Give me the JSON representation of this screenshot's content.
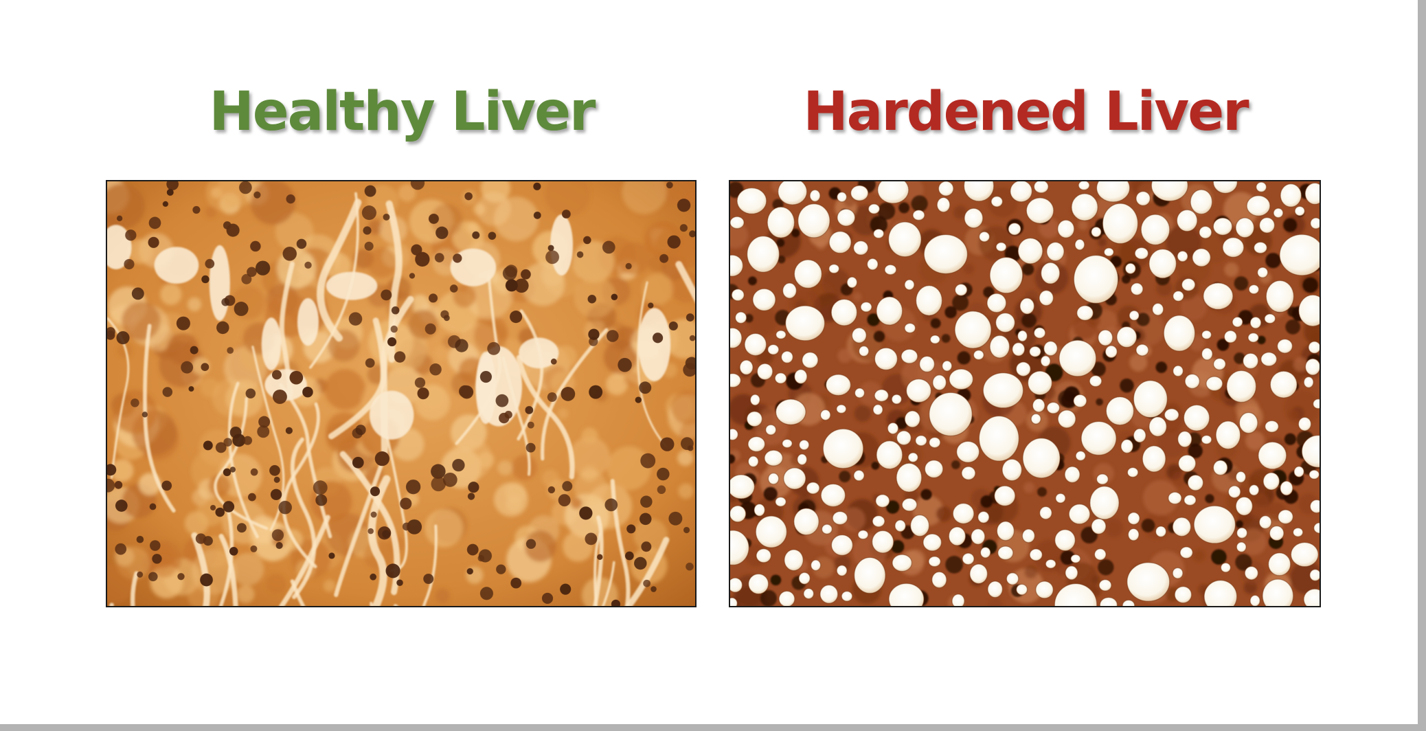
{
  "slide": {
    "left_title": "Healthy Liver",
    "right_title": "Hardened Liver",
    "colors": {
      "healthy_title": "#5e8a3c",
      "hardened_title": "#b32a22",
      "healthy_tissue": "#d48a3e",
      "hardened_tissue": "#9a4a22"
    }
  }
}
